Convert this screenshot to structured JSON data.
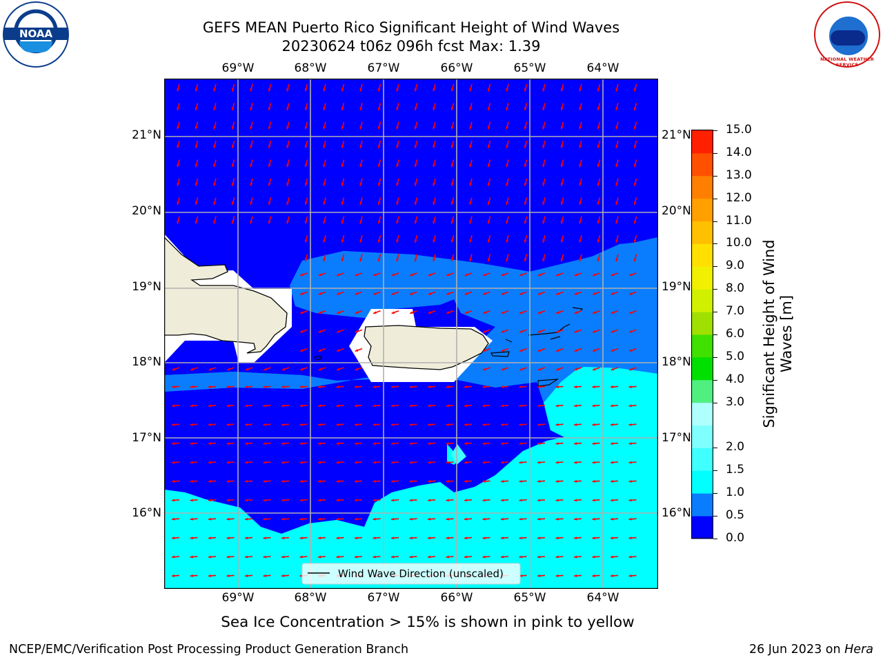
{
  "title": {
    "line1": "GEFS MEAN Puerto Rico Significant Height of Wind Waves",
    "line2": "20230624 t06z 096h fcst   Max: 1.39"
  },
  "colors": {
    "band_0_0_5": "#0000ff",
    "band_0_5_1_0": "#0a7dff",
    "band_1_0_1_5": "#00ffff",
    "band_1_5_2_0": "#40ffff",
    "land": "#efedda",
    "arrow": "#ff0000",
    "grid": "#b0b0b0"
  },
  "chart_data": {
    "type": "heatmap",
    "title": "GEFS MEAN Puerto Rico Significant Height of Wind Waves",
    "subtitle": "20230624 t06z 096h fcst   Max: 1.39",
    "x_axis": {
      "ticks": [
        "69°W",
        "68°W",
        "67°W",
        "66°W",
        "65°W",
        "64°W"
      ],
      "range_deg_W": [
        70.0,
        63.25
      ]
    },
    "y_axis": {
      "ticks": [
        "16°N",
        "17°N",
        "18°N",
        "19°N",
        "20°N",
        "21°N"
      ],
      "range_deg_N": [
        15.0,
        21.75
      ]
    },
    "grid": true,
    "legend": {
      "label": "Wind Wave Direction (unscaled)",
      "placement": "bottom-center"
    },
    "colorbar": {
      "label": "Significant Height of Wind Waves [m]",
      "ticks": [
        "0.0",
        "0.5",
        "1.0",
        "1.5",
        "2.0",
        "3.0",
        "4.0",
        "5.0",
        "6.0",
        "7.0",
        "8.0",
        "9.0",
        "10.0",
        "11.0",
        "12.0",
        "13.0",
        "14.0",
        "15.0"
      ],
      "levels": [
        0.0,
        0.5,
        1.0,
        1.5,
        2.0,
        2.5,
        3.0,
        4.0,
        5.0,
        6.0,
        7.0,
        8.0,
        9.0,
        10.0,
        11.0,
        12.0,
        13.0,
        14.0,
        15.0
      ],
      "colors": [
        "#0000ff",
        "#0a7dff",
        "#00ffff",
        "#40ffff",
        "#80ffff",
        "#b0ffff",
        "#50f080",
        "#00e000",
        "#40e000",
        "#a0e000",
        "#d0f000",
        "#f0f000",
        "#ffe000",
        "#ffc000",
        "#ffa000",
        "#ff8000",
        "#ff5000",
        "#ff2000"
      ]
    },
    "max_value": 1.39,
    "units": "m"
  },
  "note": "Sea Ice Concentration > 15% is shown in pink to yellow",
  "footer": {
    "left": "NCEP/EMC/Verification Post Processing Product Generation Branch",
    "right_prefix": "26 Jun 2023 on ",
    "right_host": "Hera"
  },
  "logos": {
    "left": "NOAA",
    "right": "NATIONAL WEATHER SERVICE"
  }
}
